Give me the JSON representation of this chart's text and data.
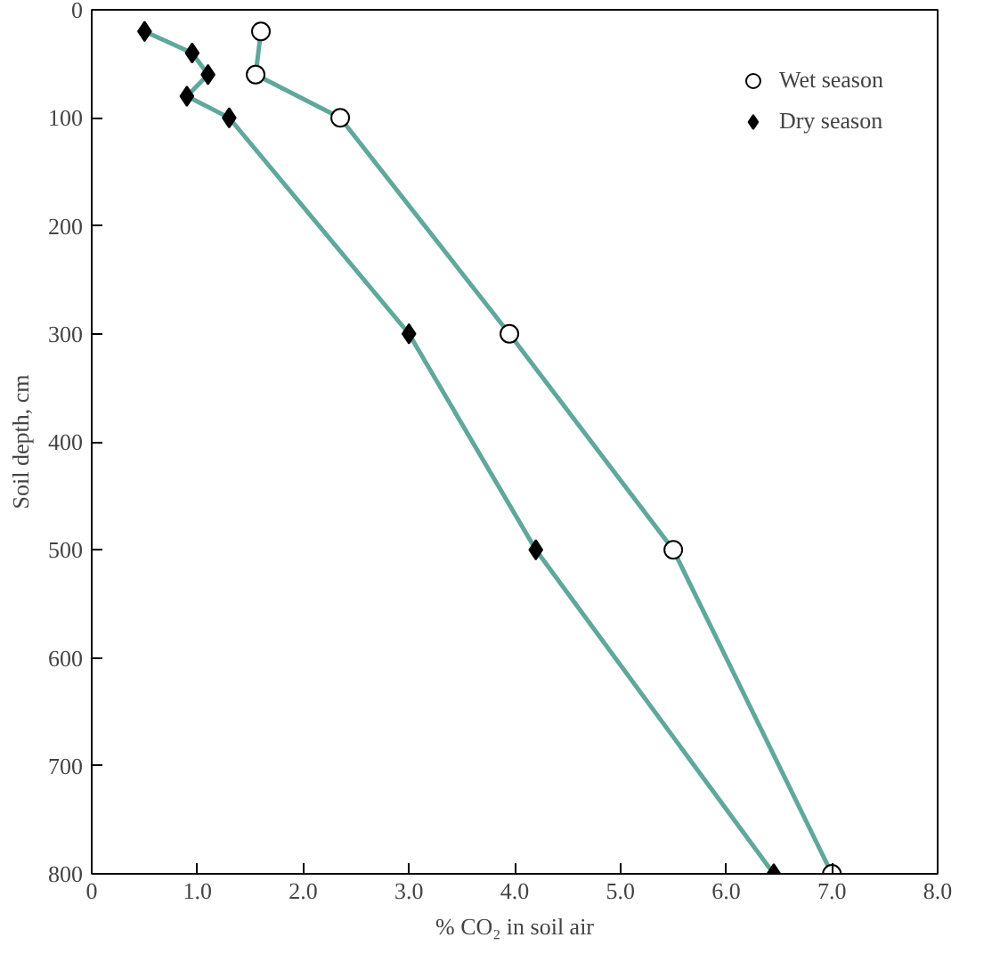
{
  "chart_data": {
    "type": "line",
    "xlabel": "% CO₂ in soil air",
    "ylabel": "Soil depth, cm",
    "xlim": [
      0,
      8
    ],
    "ylim": [
      800,
      0
    ],
    "xticks": [
      0,
      {
        "value": 1,
        "label": "1.0"
      },
      {
        "value": 2,
        "label": "2.0"
      },
      {
        "value": 3,
        "label": "3.0"
      },
      {
        "value": 4,
        "label": "4.0"
      },
      {
        "value": 5,
        "label": "5.0"
      },
      {
        "value": 6,
        "label": "6.0"
      },
      {
        "value": 7,
        "label": "7.0"
      },
      {
        "value": 8,
        "label": "8.0"
      }
    ],
    "yticks": [
      0,
      100,
      200,
      300,
      400,
      500,
      600,
      700,
      800
    ],
    "grid": false,
    "legend": "top right",
    "series": [
      {
        "name": "Wet season",
        "color": "#5fa89b",
        "marker": "circle",
        "x": [
          1.6,
          1.55,
          2.35,
          3.95,
          5.5,
          7.0
        ],
        "values": [
          20,
          60,
          100,
          300,
          500,
          800
        ]
      },
      {
        "name": "Dry season",
        "color": "#5fa89b",
        "marker": "diamond",
        "x": [
          0.5,
          0.95,
          1.1,
          0.9,
          1.3,
          3.0,
          4.2,
          6.45
        ],
        "values": [
          20,
          40,
          60,
          80,
          100,
          300,
          500,
          800
        ]
      }
    ]
  }
}
